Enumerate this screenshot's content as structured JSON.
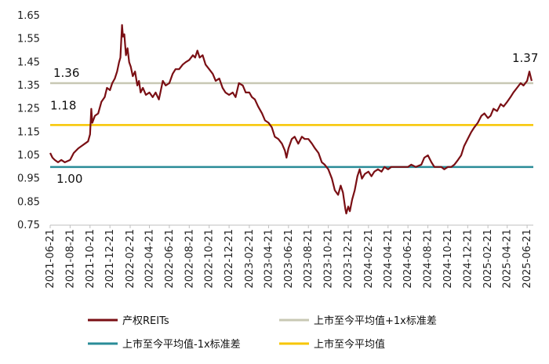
{
  "chart_data": {
    "type": "line",
    "ylim": [
      0.75,
      1.65
    ],
    "yticks": [
      "1.65",
      "1.55",
      "1.45",
      "1.35",
      "1.25",
      "1.15",
      "1.05",
      "0.95",
      "0.85",
      "0.75"
    ],
    "xlim": [
      "2021-06-21",
      "2025-07-10"
    ],
    "xticks": [
      "2021-06-21",
      "2021-08-21",
      "2021-10-21",
      "2021-12-21",
      "2022-02-21",
      "2022-04-21",
      "2022-06-21",
      "2022-08-21",
      "2022-10-21",
      "2022-12-21",
      "2023-02-21",
      "2023-04-21",
      "2023-06-21",
      "2023-08-21",
      "2023-10-21",
      "2023-12-21",
      "2024-02-21",
      "2024-04-21",
      "2024-06-21",
      "2024-08-21",
      "2024-10-21",
      "2024-12-21",
      "2025-02-21",
      "2025-04-21",
      "2025-06-21"
    ],
    "grid": false,
    "legend_position": "bottom",
    "series": [
      {
        "name": "产权REITs",
        "color": "#7a0f14",
        "points": [
          [
            "2021-06-21",
            1.06
          ],
          [
            "2021-06-28",
            1.04
          ],
          [
            "2021-07-05",
            1.03
          ],
          [
            "2021-07-15",
            1.02
          ],
          [
            "2021-07-25",
            1.03
          ],
          [
            "2021-08-05",
            1.02
          ],
          [
            "2021-08-21",
            1.03
          ],
          [
            "2021-09-01",
            1.06
          ],
          [
            "2021-09-15",
            1.08
          ],
          [
            "2021-09-25",
            1.09
          ],
          [
            "2021-10-05",
            1.1
          ],
          [
            "2021-10-15",
            1.11
          ],
          [
            "2021-10-21",
            1.14
          ],
          [
            "2021-10-25",
            1.25
          ],
          [
            "2021-10-28",
            1.19
          ],
          [
            "2021-11-05",
            1.22
          ],
          [
            "2021-11-15",
            1.23
          ],
          [
            "2021-11-25",
            1.28
          ],
          [
            "2021-12-05",
            1.3
          ],
          [
            "2021-12-12",
            1.34
          ],
          [
            "2021-12-21",
            1.33
          ],
          [
            "2021-12-28",
            1.36
          ],
          [
            "2022-01-05",
            1.38
          ],
          [
            "2022-01-12",
            1.41
          ],
          [
            "2022-01-18",
            1.45
          ],
          [
            "2022-01-22",
            1.47
          ],
          [
            "2022-01-27",
            1.61
          ],
          [
            "2022-01-30",
            1.56
          ],
          [
            "2022-02-03",
            1.57
          ],
          [
            "2022-02-08",
            1.48
          ],
          [
            "2022-02-13",
            1.51
          ],
          [
            "2022-02-18",
            1.45
          ],
          [
            "2022-02-23",
            1.43
          ],
          [
            "2022-03-01",
            1.39
          ],
          [
            "2022-03-08",
            1.41
          ],
          [
            "2022-03-15",
            1.35
          ],
          [
            "2022-03-20",
            1.37
          ],
          [
            "2022-03-25",
            1.32
          ],
          [
            "2022-04-01",
            1.34
          ],
          [
            "2022-04-10",
            1.31
          ],
          [
            "2022-04-21",
            1.32
          ],
          [
            "2022-05-01",
            1.3
          ],
          [
            "2022-05-10",
            1.32
          ],
          [
            "2022-05-20",
            1.29
          ],
          [
            "2022-06-01",
            1.37
          ],
          [
            "2022-06-10",
            1.35
          ],
          [
            "2022-06-21",
            1.36
          ],
          [
            "2022-07-01",
            1.4
          ],
          [
            "2022-07-10",
            1.42
          ],
          [
            "2022-07-21",
            1.42
          ],
          [
            "2022-08-01",
            1.44
          ],
          [
            "2022-08-10",
            1.45
          ],
          [
            "2022-08-21",
            1.46
          ],
          [
            "2022-09-01",
            1.48
          ],
          [
            "2022-09-08",
            1.47
          ],
          [
            "2022-09-15",
            1.5
          ],
          [
            "2022-09-22",
            1.47
          ],
          [
            "2022-10-01",
            1.48
          ],
          [
            "2022-10-10",
            1.44
          ],
          [
            "2022-10-21",
            1.42
          ],
          [
            "2022-11-01",
            1.4
          ],
          [
            "2022-11-10",
            1.37
          ],
          [
            "2022-11-21",
            1.38
          ],
          [
            "2022-12-01",
            1.34
          ],
          [
            "2022-12-10",
            1.32
          ],
          [
            "2022-12-21",
            1.31
          ],
          [
            "2023-01-01",
            1.32
          ],
          [
            "2023-01-10",
            1.3
          ],
          [
            "2023-01-20",
            1.36
          ],
          [
            "2023-02-01",
            1.35
          ],
          [
            "2023-02-10",
            1.32
          ],
          [
            "2023-02-21",
            1.32
          ],
          [
            "2023-03-01",
            1.3
          ],
          [
            "2023-03-10",
            1.29
          ],
          [
            "2023-03-20",
            1.26
          ],
          [
            "2023-04-01",
            1.23
          ],
          [
            "2023-04-10",
            1.2
          ],
          [
            "2023-04-21",
            1.19
          ],
          [
            "2023-05-01",
            1.17
          ],
          [
            "2023-05-10",
            1.13
          ],
          [
            "2023-05-21",
            1.12
          ],
          [
            "2023-06-01",
            1.1
          ],
          [
            "2023-06-10",
            1.07
          ],
          [
            "2023-06-15",
            1.04
          ],
          [
            "2023-06-21",
            1.08
          ],
          [
            "2023-07-01",
            1.12
          ],
          [
            "2023-07-10",
            1.13
          ],
          [
            "2023-07-21",
            1.1
          ],
          [
            "2023-08-01",
            1.13
          ],
          [
            "2023-08-10",
            1.12
          ],
          [
            "2023-08-21",
            1.12
          ],
          [
            "2023-09-01",
            1.1
          ],
          [
            "2023-09-10",
            1.08
          ],
          [
            "2023-09-21",
            1.06
          ],
          [
            "2023-10-01",
            1.02
          ],
          [
            "2023-10-10",
            1.01
          ],
          [
            "2023-10-21",
            0.99
          ],
          [
            "2023-11-01",
            0.95
          ],
          [
            "2023-11-10",
            0.9
          ],
          [
            "2023-11-20",
            0.88
          ],
          [
            "2023-11-28",
            0.92
          ],
          [
            "2023-12-05",
            0.89
          ],
          [
            "2023-12-12",
            0.82
          ],
          [
            "2023-12-15",
            0.8
          ],
          [
            "2023-12-21",
            0.83
          ],
          [
            "2023-12-26",
            0.81
          ],
          [
            "2024-01-02",
            0.86
          ],
          [
            "2024-01-10",
            0.9
          ],
          [
            "2024-01-18",
            0.96
          ],
          [
            "2024-01-25",
            0.99
          ],
          [
            "2024-02-01",
            0.95
          ],
          [
            "2024-02-10",
            0.97
          ],
          [
            "2024-02-21",
            0.98
          ],
          [
            "2024-03-01",
            0.96
          ],
          [
            "2024-03-10",
            0.98
          ],
          [
            "2024-03-21",
            0.99
          ],
          [
            "2024-04-01",
            0.98
          ],
          [
            "2024-04-10",
            1.0
          ],
          [
            "2024-04-21",
            0.99
          ],
          [
            "2024-05-01",
            1.0
          ],
          [
            "2024-05-15",
            1.0
          ],
          [
            "2024-06-01",
            1.0
          ],
          [
            "2024-06-21",
            1.0
          ],
          [
            "2024-07-01",
            1.01
          ],
          [
            "2024-07-15",
            1.0
          ],
          [
            "2024-08-01",
            1.01
          ],
          [
            "2024-08-10",
            1.04
          ],
          [
            "2024-08-21",
            1.05
          ],
          [
            "2024-09-01",
            1.02
          ],
          [
            "2024-09-10",
            1.0
          ],
          [
            "2024-09-21",
            1.0
          ],
          [
            "2024-10-01",
            1.0
          ],
          [
            "2024-10-10",
            0.99
          ],
          [
            "2024-10-21",
            1.0
          ],
          [
            "2024-11-01",
            1.0
          ],
          [
            "2024-11-10",
            1.01
          ],
          [
            "2024-11-21",
            1.03
          ],
          [
            "2024-12-01",
            1.05
          ],
          [
            "2024-12-10",
            1.09
          ],
          [
            "2024-12-21",
            1.12
          ],
          [
            "2025-01-01",
            1.15
          ],
          [
            "2025-01-10",
            1.17
          ],
          [
            "2025-01-21",
            1.19
          ],
          [
            "2025-02-01",
            1.22
          ],
          [
            "2025-02-10",
            1.23
          ],
          [
            "2025-02-21",
            1.21
          ],
          [
            "2025-03-01",
            1.22
          ],
          [
            "2025-03-10",
            1.25
          ],
          [
            "2025-03-21",
            1.24
          ],
          [
            "2025-04-01",
            1.27
          ],
          [
            "2025-04-10",
            1.26
          ],
          [
            "2025-04-21",
            1.28
          ],
          [
            "2025-05-01",
            1.3
          ],
          [
            "2025-05-10",
            1.32
          ],
          [
            "2025-05-21",
            1.34
          ],
          [
            "2025-06-01",
            1.36
          ],
          [
            "2025-06-10",
            1.35
          ],
          [
            "2025-06-21",
            1.37
          ],
          [
            "2025-06-28",
            1.41
          ],
          [
            "2025-07-05",
            1.37
          ]
        ]
      },
      {
        "name": "上市至今平均值+1x标准差",
        "color": "#c8c8b4",
        "value": 1.36
      },
      {
        "name": "上市至今平均值-1x标准差",
        "color": "#2a8c98",
        "value": 1.0
      },
      {
        "name": "上市至今平均值",
        "color": "#f7c600",
        "value": 1.18
      }
    ],
    "annotations": [
      {
        "text": "1.36",
        "target": "上市至今平均值+1x标准差"
      },
      {
        "text": "1.18",
        "target": "上市至今平均值"
      },
      {
        "text": "1.00",
        "target": "上市至今平均值-1x标准差"
      },
      {
        "text": "1.37",
        "target": "产权REITs"
      }
    ]
  }
}
